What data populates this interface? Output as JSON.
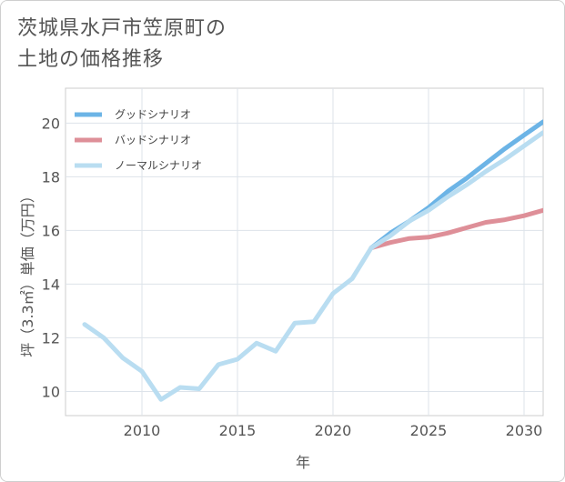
{
  "title": "茨城県水戸市笠原町の\n土地の価格推移",
  "chart_data": {
    "type": "line",
    "xlabel": "年",
    "ylabel": "坪（3.3㎡）単価（万円）",
    "xlim": [
      2006,
      2031
    ],
    "ylim": [
      9.1,
      21.3
    ],
    "xticks": [
      2010,
      2015,
      2020,
      2025,
      2030
    ],
    "yticks": [
      10,
      12,
      14,
      16,
      18,
      20
    ],
    "grid": true,
    "legend_position": "top-left",
    "series": [
      {
        "name": "グッドシナリオ",
        "color": "#6cb4e6",
        "x": [
          2022,
          2023,
          2024,
          2025,
          2026,
          2027,
          2028,
          2029,
          2030,
          2031
        ],
        "y": [
          15.35,
          15.9,
          16.35,
          16.85,
          17.45,
          17.95,
          18.5,
          19.05,
          19.55,
          20.05
        ]
      },
      {
        "name": "バッドシナリオ",
        "color": "#de8f98",
        "x": [
          2022,
          2023,
          2024,
          2025,
          2026,
          2027,
          2028,
          2029,
          2030,
          2031
        ],
        "y": [
          15.35,
          15.55,
          15.7,
          15.75,
          15.9,
          16.1,
          16.3,
          16.4,
          16.55,
          16.75
        ]
      },
      {
        "name": "ノーマルシナリオ",
        "color": "#b9ddf1",
        "x": [
          2007,
          2008,
          2009,
          2010,
          2011,
          2012,
          2013,
          2014,
          2015,
          2016,
          2017,
          2018,
          2019,
          2020,
          2021,
          2022,
          2023,
          2024,
          2025,
          2026,
          2027,
          2028,
          2029,
          2030,
          2031
        ],
        "y": [
          12.5,
          12.0,
          11.25,
          10.75,
          9.7,
          10.15,
          10.1,
          11.0,
          11.2,
          11.8,
          11.5,
          12.55,
          12.6,
          13.65,
          14.2,
          15.35,
          15.8,
          16.35,
          16.75,
          17.25,
          17.7,
          18.2,
          18.65,
          19.15,
          19.65
        ]
      }
    ]
  }
}
